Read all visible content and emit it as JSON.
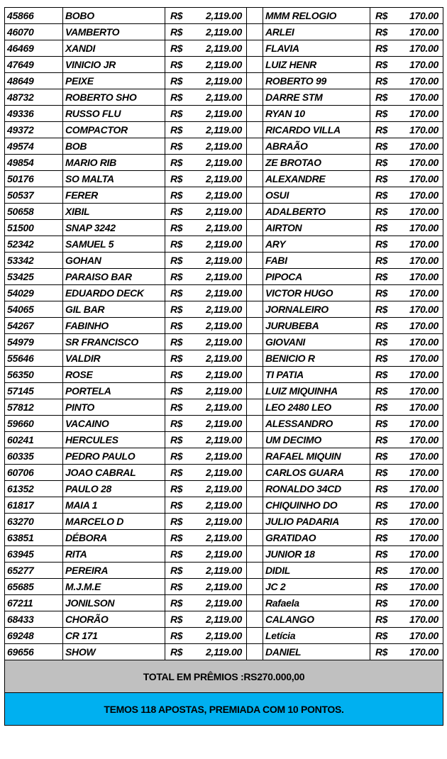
{
  "currency": "R$",
  "amount_left": "2,119.00",
  "amount_right": "170.00",
  "rows": [
    {
      "code": "45866",
      "name": "BOBO",
      "name2": "MMM RELOGIO"
    },
    {
      "code": "46070",
      "name": "VAMBERTO",
      "name2": "ARLEI"
    },
    {
      "code": "46469",
      "name": "XANDI",
      "name2": "FLAVIA"
    },
    {
      "code": "47649",
      "name": "VINICIO JR",
      "name2": "LUIZ HENR"
    },
    {
      "code": "48649",
      "name": "PEIXE",
      "name2": "ROBERTO 99"
    },
    {
      "code": "48732",
      "name": "ROBERTO SHO",
      "name2": "DARRE STM"
    },
    {
      "code": "49336",
      "name": "RUSSO FLU",
      "name2": "RYAN 10"
    },
    {
      "code": "49372",
      "name": "COMPACTOR",
      "name2": "RICARDO VILLA"
    },
    {
      "code": "49574",
      "name": "BOB",
      "name2": "ABRAÃO"
    },
    {
      "code": "49854",
      "name": "MARIO RIB",
      "name2": "ZE BROTAO"
    },
    {
      "code": "50176",
      "name": "SO MALTA",
      "name2": "ALEXANDRE"
    },
    {
      "code": "50537",
      "name": "FERER",
      "name2": "OSUI"
    },
    {
      "code": "50658",
      "name": "XIBIL",
      "name2": "ADALBERTO"
    },
    {
      "code": "51500",
      "name": "SNAP 3242",
      "name2": "AIRTON"
    },
    {
      "code": "52342",
      "name": "SAMUEL 5",
      "name2": "ARY"
    },
    {
      "code": "53342",
      "name": "GOHAN",
      "name2": "FABI"
    },
    {
      "code": "53425",
      "name": "PARAISO BAR",
      "name2": "PIPOCA"
    },
    {
      "code": "54029",
      "name": "EDUARDO DECK",
      "name2": "VICTOR HUGO"
    },
    {
      "code": "54065",
      "name": "GIL BAR",
      "name2": "JORNALEIRO"
    },
    {
      "code": "54267",
      "name": "FABINHO",
      "name2": "JURUBEBA"
    },
    {
      "code": "54979",
      "name": "SR FRANCISCO",
      "name2": "GIOVANI"
    },
    {
      "code": "55646",
      "name": "VALDIR",
      "name2": "BENICIO R"
    },
    {
      "code": "56350",
      "name": "ROSE",
      "name2": "TI PATIA"
    },
    {
      "code": "57145",
      "name": "PORTELA",
      "name2": "LUIZ MIQUINHA"
    },
    {
      "code": "57812",
      "name": "PINTO",
      "name2": "LEO 2480 LEO"
    },
    {
      "code": "59660",
      "name": "VACAINO",
      "name2": "ALESSANDRO"
    },
    {
      "code": "60241",
      "name": "HERCULES",
      "name2": "UM DECIMO"
    },
    {
      "code": "60335",
      "name": "PEDRO PAULO",
      "name2": "RAFAEL MIQUIN"
    },
    {
      "code": "60706",
      "name": "JOAO CABRAL",
      "name2": "CARLOS GUARA"
    },
    {
      "code": "61352",
      "name": "PAULO 28",
      "name2": "RONALDO 34CD"
    },
    {
      "code": "61817",
      "name": "MAIA 1",
      "name2": "CHIQUINHO DO"
    },
    {
      "code": "63270",
      "name": "MARCELO D",
      "name2": "JULIO PADARIA"
    },
    {
      "code": "63851",
      "name": "DÉBORA",
      "name2": "GRATIDAO"
    },
    {
      "code": "63945",
      "name": "RITA",
      "name2": "JUNIOR 18"
    },
    {
      "code": "65277",
      "name": "PEREIRA",
      "name2": "DIDIL"
    },
    {
      "code": "65685",
      "name": "M.J.M.E",
      "name2": "JC 2"
    },
    {
      "code": "67211",
      "name": "JONILSON",
      "name2": "Rafaela"
    },
    {
      "code": "68433",
      "name": "CHORÃO",
      "name2": "CALANGO"
    },
    {
      "code": "69248",
      "name": "CR 171",
      "name2": "Letícia"
    },
    {
      "code": "69656",
      "name": "SHOW",
      "name2": "DANIEL"
    }
  ],
  "total_label": "TOTAL EM PRÊMIOS :RS270.000,00",
  "note": "TEMOS 118 APOSTAS, PREMIADA COM 10 PONTOS.",
  "colors": {
    "total_bg": "#c0c0c0",
    "note_bg": "#00b0f0"
  }
}
